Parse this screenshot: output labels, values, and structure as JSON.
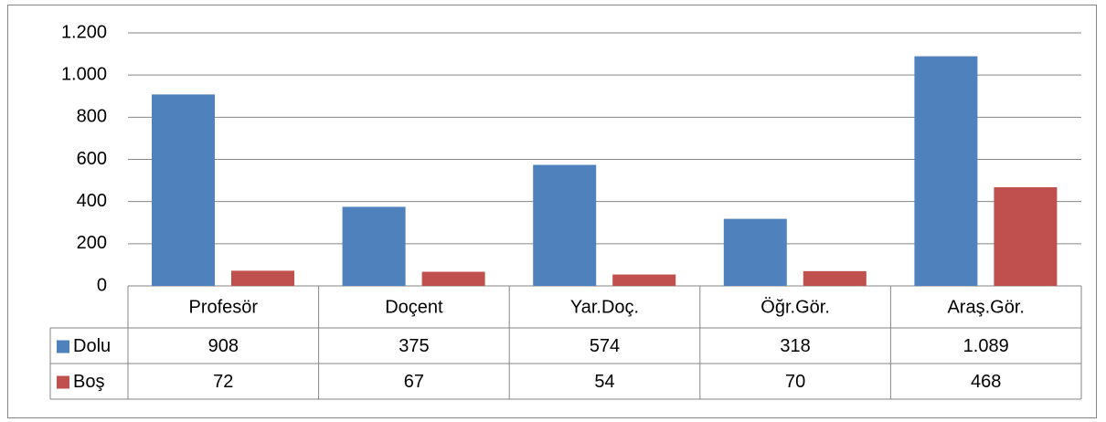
{
  "chart_data": {
    "type": "bar",
    "categories": [
      "Profesör",
      "Doçent",
      "Yar.Doç.",
      "Öğr.Gör.",
      "Araş.Gör."
    ],
    "series": [
      {
        "name": "Dolu",
        "color": "#4f81bd",
        "values": [
          908,
          375,
          574,
          318,
          1089
        ],
        "value_labels": [
          "908",
          "375",
          "574",
          "318",
          "1.089"
        ]
      },
      {
        "name": "Boş",
        "color": "#c0504d",
        "values": [
          72,
          67,
          54,
          70,
          468
        ],
        "value_labels": [
          "72",
          "67",
          "54",
          "70",
          "468"
        ]
      }
    ],
    "ylim": [
      0,
      1200
    ],
    "yticks": [
      0,
      200,
      400,
      600,
      800,
      {
        "value": 1000,
        "label": "1.000"
      },
      {
        "value": 1200,
        "label": "1.200"
      }
    ],
    "grid": true
  }
}
